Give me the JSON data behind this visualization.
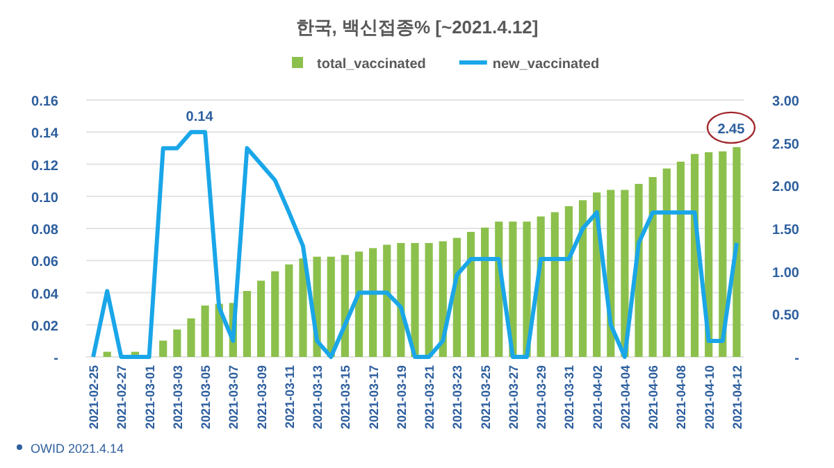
{
  "chart_data": {
    "type": "bar",
    "title": "한국, 백신접종% [~2021.4.12]",
    "categories": [
      "2021-02-25",
      null,
      "2021-02-27",
      null,
      "2021-03-01",
      null,
      "2021-03-03",
      null,
      "2021-03-05",
      null,
      "2021-03-07",
      null,
      "2021-03-09",
      null,
      "2021-03-11",
      null,
      "2021-03-13",
      null,
      "2021-03-15",
      null,
      "2021-03-17",
      null,
      "2021-03-19",
      null,
      "2021-03-21",
      null,
      "2021-03-23",
      null,
      "2021-03-25",
      null,
      "2021-03-27",
      null,
      "2021-03-29",
      null,
      "2021-03-31",
      null,
      "2021-04-02",
      null,
      "2021-04-04",
      null,
      "2021-04-06",
      null,
      "2021-04-08",
      null,
      "2021-04-10",
      null,
      "2021-04-12"
    ],
    "series": [
      {
        "name": "total_vaccinated",
        "axis": "y2",
        "color": "#8cc04c",
        "values": [
          null,
          0.06,
          null,
          0.06,
          null,
          0.19,
          0.32,
          0.45,
          0.6,
          0.62,
          0.63,
          0.77,
          0.89,
          1.0,
          1.08,
          1.15,
          1.17,
          1.17,
          1.19,
          1.23,
          1.27,
          1.31,
          1.33,
          1.33,
          1.33,
          1.35,
          1.39,
          1.46,
          1.51,
          1.58,
          1.58,
          1.58,
          1.64,
          1.69,
          1.76,
          1.83,
          1.92,
          1.95,
          1.95,
          2.02,
          2.1,
          2.2,
          2.28,
          2.37,
          2.39,
          2.4,
          2.45
        ],
        "value_labels": [
          null,
          null,
          null,
          null,
          null,
          null,
          null,
          null,
          null,
          null,
          null,
          null,
          null,
          null,
          null,
          null,
          null,
          null,
          null,
          null,
          null,
          null,
          null,
          null,
          null,
          null,
          null,
          null,
          null,
          null,
          null,
          null,
          null,
          null,
          null,
          null,
          null,
          null,
          null,
          null,
          null,
          null,
          null,
          null,
          null,
          null,
          "2.45"
        ]
      },
      {
        "name": "new_vaccinated",
        "type": "line",
        "color": "#1aa6e8",
        "values": [
          0,
          0.041,
          0,
          0,
          0,
          0.13,
          0.13,
          0.14,
          0.14,
          0.031,
          0.01,
          0.13,
          0.12,
          0.11,
          0.09,
          0.069,
          0.01,
          0,
          0.02,
          0.04,
          0.04,
          0.04,
          0.031,
          0,
          0,
          0.01,
          0.051,
          0.061,
          0.061,
          0.061,
          0,
          0,
          0.061,
          0.061,
          0.061,
          0.08,
          0.09,
          0.02,
          0,
          0.071,
          0.09,
          0.09,
          0.09,
          0.09,
          0.01,
          0.01,
          0.071
        ],
        "value_labels": [
          null,
          null,
          null,
          null,
          null,
          null,
          null,
          null,
          "0.14",
          null,
          null,
          null,
          null,
          null,
          null,
          null,
          null,
          null,
          null,
          null,
          null,
          null,
          null,
          null,
          null,
          null,
          null,
          null,
          null,
          null,
          null,
          null,
          null,
          null,
          null,
          null,
          null,
          null,
          null,
          null,
          null,
          null,
          null,
          null,
          null,
          null,
          null
        ]
      }
    ],
    "ylim": [
      0,
      0.16
    ],
    "yticks": [
      {
        "value": 0,
        "label": "-"
      },
      {
        "value": 0.02,
        "label": "0.02"
      },
      {
        "value": 0.04,
        "label": "0.04"
      },
      {
        "value": 0.06,
        "label": "0.06"
      },
      {
        "value": 0.08,
        "label": "0.08"
      },
      {
        "value": 0.1,
        "label": "0.10"
      },
      {
        "value": 0.12,
        "label": "0.12"
      },
      {
        "value": 0.14,
        "label": "0.14"
      },
      {
        "value": 0.16,
        "label": "0.16"
      }
    ],
    "y2lim": [
      0,
      3
    ],
    "y2ticks": [
      {
        "value": 0,
        "label": "-"
      },
      {
        "value": 0.5,
        "label": "0.50"
      },
      {
        "value": 1,
        "label": "1.00"
      },
      {
        "value": 1.5,
        "label": "1.50"
      },
      {
        "value": 2,
        "label": "2.00"
      },
      {
        "value": 2.5,
        "label": "2.50"
      },
      {
        "value": 3,
        "label": "3.00"
      }
    ],
    "grid": "y",
    "legend": "top",
    "marker": "none",
    "line_style": "solid",
    "annotations": [
      "OWID 2021.4.14"
    ]
  }
}
